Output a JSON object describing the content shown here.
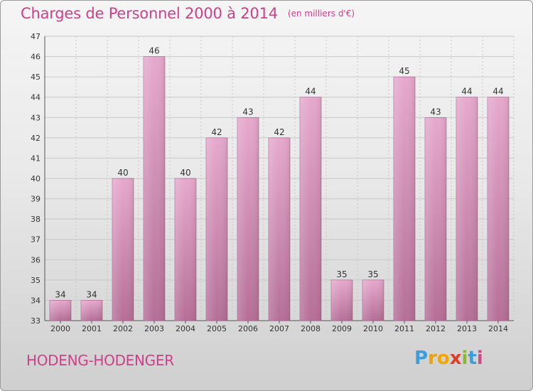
{
  "header": {
    "title": "Charges de Personnel 2000 à 2014",
    "unit": "(en milliers d'€)"
  },
  "footer": {
    "town": "HODENG-HODENGER",
    "logo_letters": [
      "P",
      "r",
      "o",
      "x",
      "i",
      "t",
      "i"
    ],
    "logo_colors": [
      "#3aa0dc",
      "#e8a21a",
      "#f2a600",
      "#e03c2a",
      "#8ab830",
      "#3aa0dc",
      "#d04a8c"
    ]
  },
  "chart_data": {
    "type": "bar",
    "title": "Charges de Personnel 2000 à 2014",
    "subtitle": "(en milliers d'€)",
    "categories": [
      "2000",
      "2001",
      "2002",
      "2003",
      "2004",
      "2005",
      "2006",
      "2007",
      "2008",
      "2009",
      "2010",
      "2011",
      "2012",
      "2013",
      "2014"
    ],
    "values": [
      34,
      34,
      40,
      46,
      40,
      42,
      43,
      42,
      44,
      35,
      35,
      45,
      43,
      44,
      44
    ],
    "ylim": [
      33,
      47
    ],
    "yticks": [
      33,
      34,
      35,
      36,
      37,
      38,
      39,
      40,
      41,
      42,
      43,
      44,
      45,
      46,
      47
    ],
    "grid": true,
    "legend": "none",
    "bar_color": "#d681b2"
  }
}
